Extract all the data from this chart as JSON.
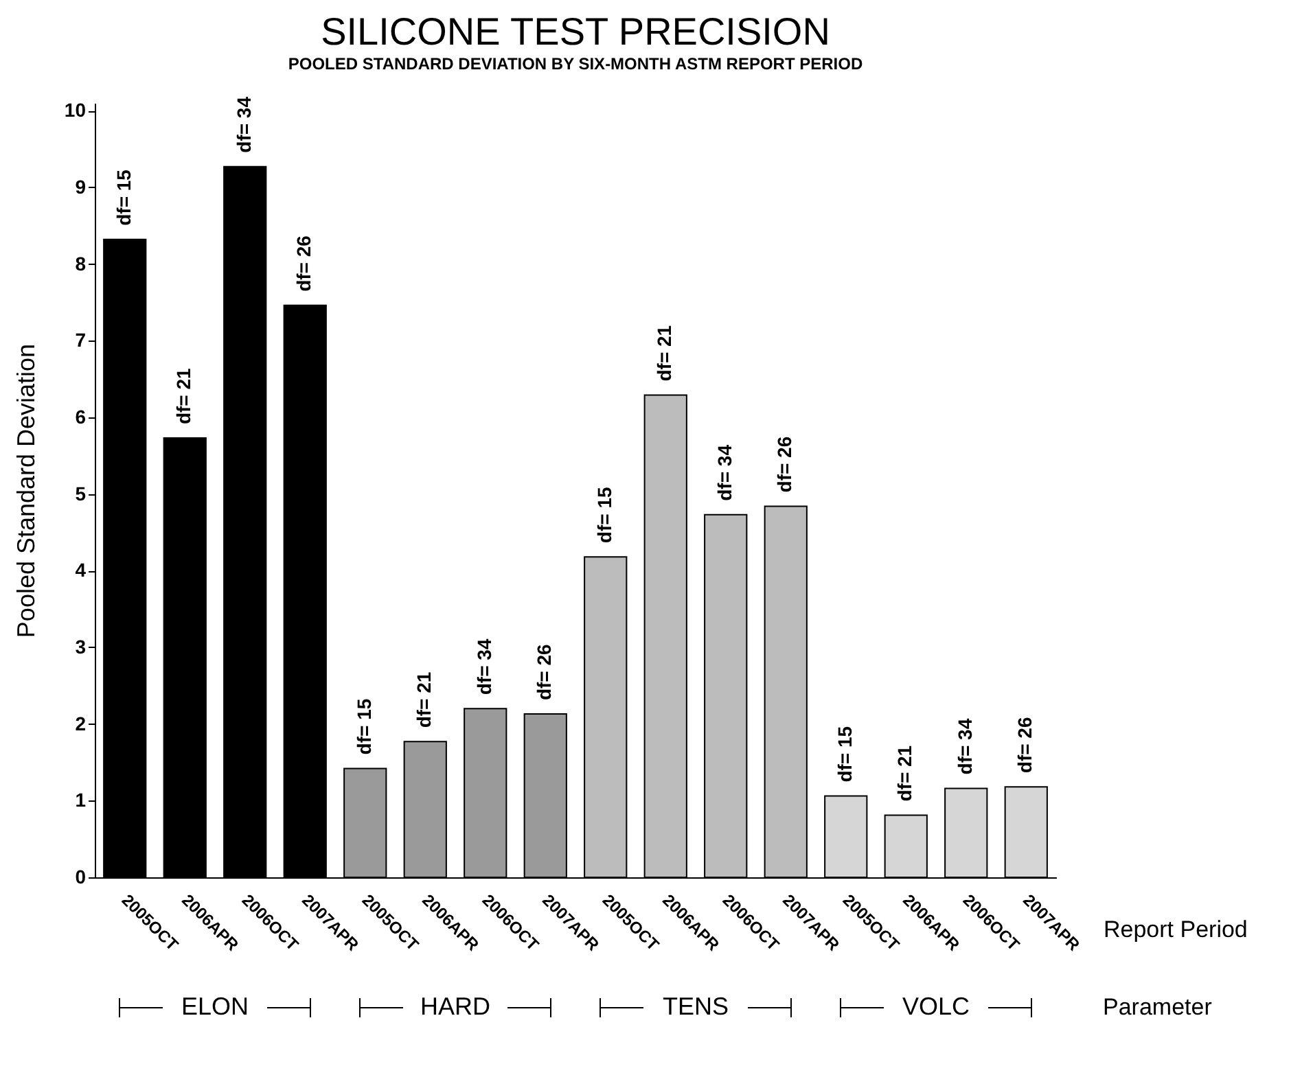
{
  "chart_data": {
    "type": "bar",
    "title": "SILICONE TEST PRECISION",
    "subtitle": "POOLED STANDARD DEVIATION BY SIX-MONTH ASTM REPORT PERIOD",
    "xlabel": "Report Period",
    "ylabel": "Pooled Standard Deviation",
    "categories": [
      "2005OCT",
      "2006APR",
      "2006OCT",
      "2007APR",
      "2005OCT",
      "2006APR",
      "2006OCT",
      "2007APR",
      "2005OCT",
      "2006APR",
      "2006OCT",
      "2007APR",
      "2005OCT",
      "2006APR",
      "2006OCT",
      "2007APR"
    ],
    "series": [
      {
        "name": "ELON",
        "color": "#000000",
        "values": [
          8.32,
          5.73,
          9.27,
          7.46,
          null,
          null,
          null,
          null,
          null,
          null,
          null,
          null,
          null,
          null,
          null,
          null
        ]
      },
      {
        "name": "HARD",
        "color": "#9a9a9a",
        "values": [
          null,
          null,
          null,
          null,
          1.42,
          1.77,
          2.2,
          2.13,
          null,
          null,
          null,
          null,
          null,
          null,
          null,
          null
        ]
      },
      {
        "name": "TENS",
        "color": "#bcbcbc",
        "values": [
          null,
          null,
          null,
          null,
          null,
          null,
          null,
          null,
          4.18,
          6.29,
          4.73,
          4.84,
          null,
          null,
          null,
          null
        ]
      },
      {
        "name": "VOLC",
        "color": "#d6d6d6",
        "values": [
          null,
          null,
          null,
          null,
          null,
          null,
          null,
          null,
          null,
          null,
          null,
          null,
          1.06,
          0.81,
          1.16,
          1.18
        ]
      }
    ],
    "annotations": [
      "Parameter",
      "df= 15",
      "df= 21",
      "df= 34",
      "df= 26",
      "df= 15",
      "df= 21",
      "df= 34",
      "df= 26",
      "df= 15",
      "df= 21",
      "df= 34",
      "df= 26",
      "df= 15",
      "df= 21",
      "df= 34",
      "df= 26"
    ],
    "ylim": [
      0,
      10.1
    ],
    "yticks": [
      0,
      1,
      2,
      3,
      4,
      5,
      6,
      7,
      8,
      9,
      10
    ],
    "grid": false,
    "legend": "bottom"
  }
}
